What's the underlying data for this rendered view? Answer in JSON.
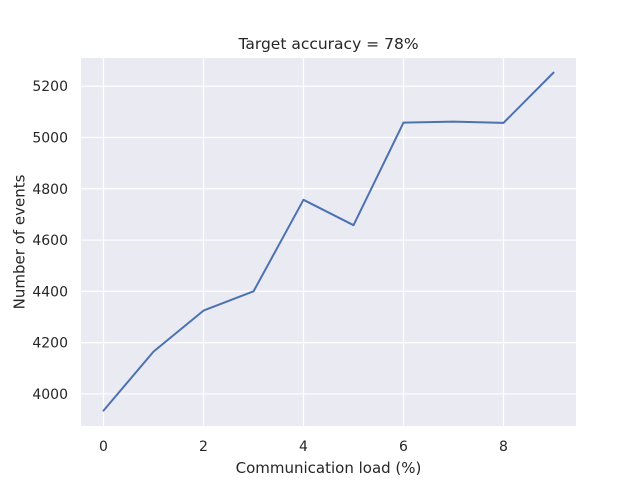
{
  "chart_data": {
    "type": "line",
    "title": "Target accuracy = 78%",
    "xlabel": "Communication load (%)",
    "ylabel": "Number of events",
    "xlim": [
      -0.45,
      9.45
    ],
    "ylim": [
      3875,
      5310
    ],
    "xticks": [
      0,
      2,
      4,
      6,
      8
    ],
    "yticks": [
      4000,
      4200,
      4400,
      4600,
      4800,
      5000,
      5200
    ],
    "grid": true,
    "series": [
      {
        "color": "#4c72b0",
        "x": [
          0,
          1,
          2,
          3,
          4,
          5,
          6,
          7,
          8,
          9
        ],
        "y": [
          3935,
          4165,
          4325,
          4400,
          4757,
          4658,
          5058,
          5062,
          5057,
          5253
        ]
      }
    ]
  }
}
